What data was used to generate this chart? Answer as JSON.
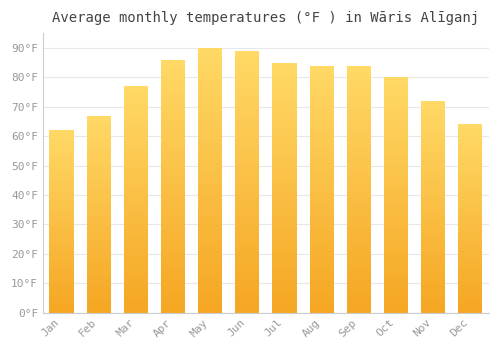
{
  "title": "Average monthly temperatures (°F ) in Wāris Alīganj",
  "months": [
    "Jan",
    "Feb",
    "Mar",
    "Apr",
    "May",
    "Jun",
    "Jul",
    "Aug",
    "Sep",
    "Oct",
    "Nov",
    "Dec"
  ],
  "values": [
    62,
    67,
    77,
    86,
    90,
    89,
    85,
    84,
    84,
    80,
    72,
    64
  ],
  "bar_color_bottom": "#F5A623",
  "bar_color_top": "#FFD966",
  "ylim": [
    0,
    95
  ],
  "yticks": [
    0,
    10,
    20,
    30,
    40,
    50,
    60,
    70,
    80,
    90
  ],
  "ytick_labels": [
    "0°F",
    "10°F",
    "20°F",
    "30°F",
    "40°F",
    "50°F",
    "60°F",
    "70°F",
    "80°F",
    "90°F"
  ],
  "background_color": "#ffffff",
  "plot_bg_color": "#ffffff",
  "grid_color": "#e8e8e8",
  "title_fontsize": 10,
  "tick_fontsize": 8,
  "tick_color": "#999999"
}
